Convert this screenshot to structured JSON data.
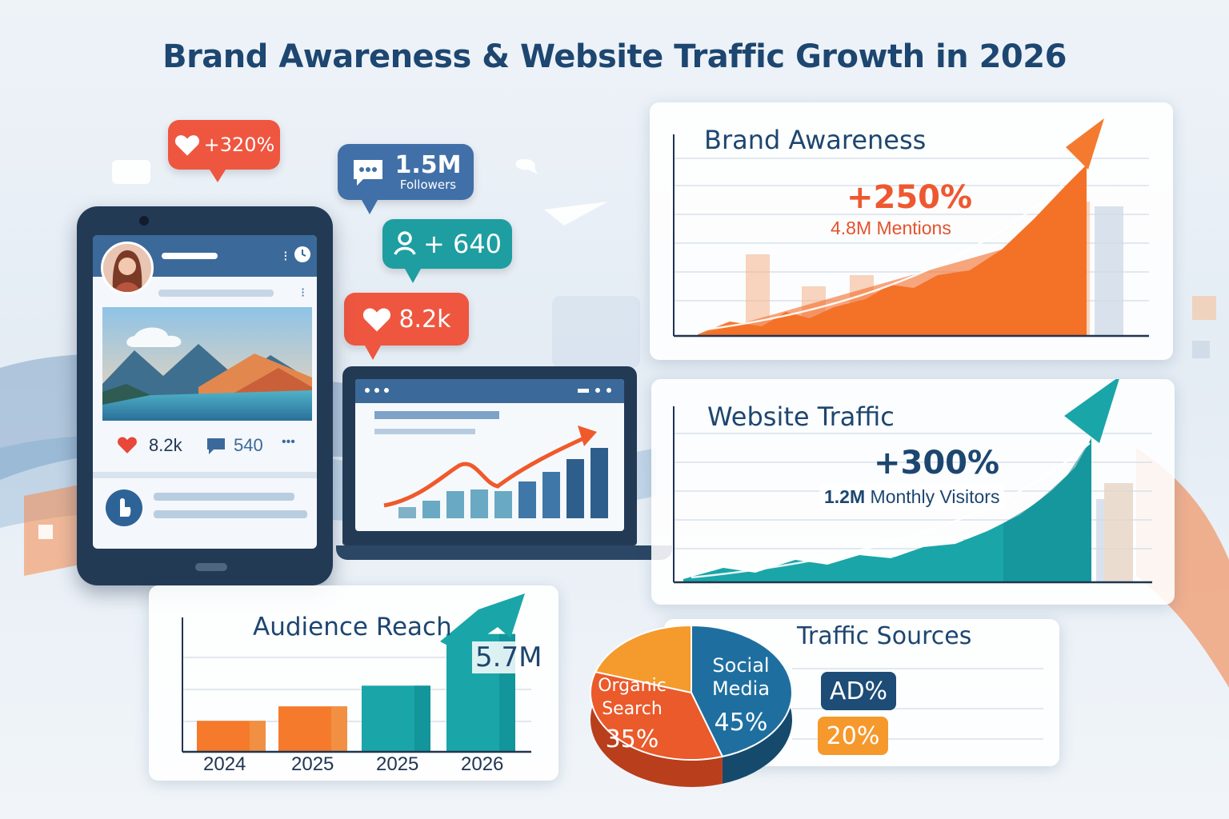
{
  "title": "Brand Awareness & Website Traffic Growth in 2026",
  "colors": {
    "navy": "#1d4670",
    "orange": "#f26a2a",
    "teal": "#1aa6a8",
    "red": "#ee5640",
    "blue": "#3f77b6",
    "gold": "#f59a2c"
  },
  "social_badges": {
    "likes_growth": "+320%",
    "followers_value": "1.5M",
    "followers_label": "Followers",
    "new_followers": "+ 640",
    "likes_count": "8.2k"
  },
  "phone_post": {
    "likes": "8.2k",
    "comments": "540",
    "more": "•••"
  },
  "brand_awareness": {
    "title": "Brand Awareness",
    "growth": "+250%",
    "detail": "4.8M Mentions"
  },
  "website_traffic": {
    "title": "Website Traffic",
    "growth": "+300%",
    "detail_value": "1.2M",
    "detail_label": "Monthly Visitors"
  },
  "icons": [
    "heart-icon",
    "chat-bubble-icon",
    "user-plus-icon",
    "clock-icon",
    "avatar-icon",
    "mountain-landscape-icon"
  ],
  "chart_data": [
    {
      "type": "bar",
      "title": "Audience Reach",
      "categories": [
        "2024",
        "2025",
        "2025",
        "2026"
      ],
      "values": [
        1.5,
        2.2,
        3.2,
        5.7
      ],
      "annotation": "5.7M",
      "ylim": [
        0,
        6.5
      ]
    },
    {
      "type": "pie",
      "title": "Traffic Sources",
      "slices": [
        {
          "name": "Organic Search",
          "value": 35,
          "label": "35%"
        },
        {
          "name": "Social Media",
          "value": 45,
          "label": "45%"
        },
        {
          "name": "",
          "value": 20,
          "label": ""
        }
      ],
      "legend_values": [
        "AD%",
        "20%"
      ],
      "slice_name_lines": {
        "organic": [
          "Organic",
          "Search"
        ],
        "social": [
          "Social",
          "Media"
        ]
      }
    }
  ]
}
